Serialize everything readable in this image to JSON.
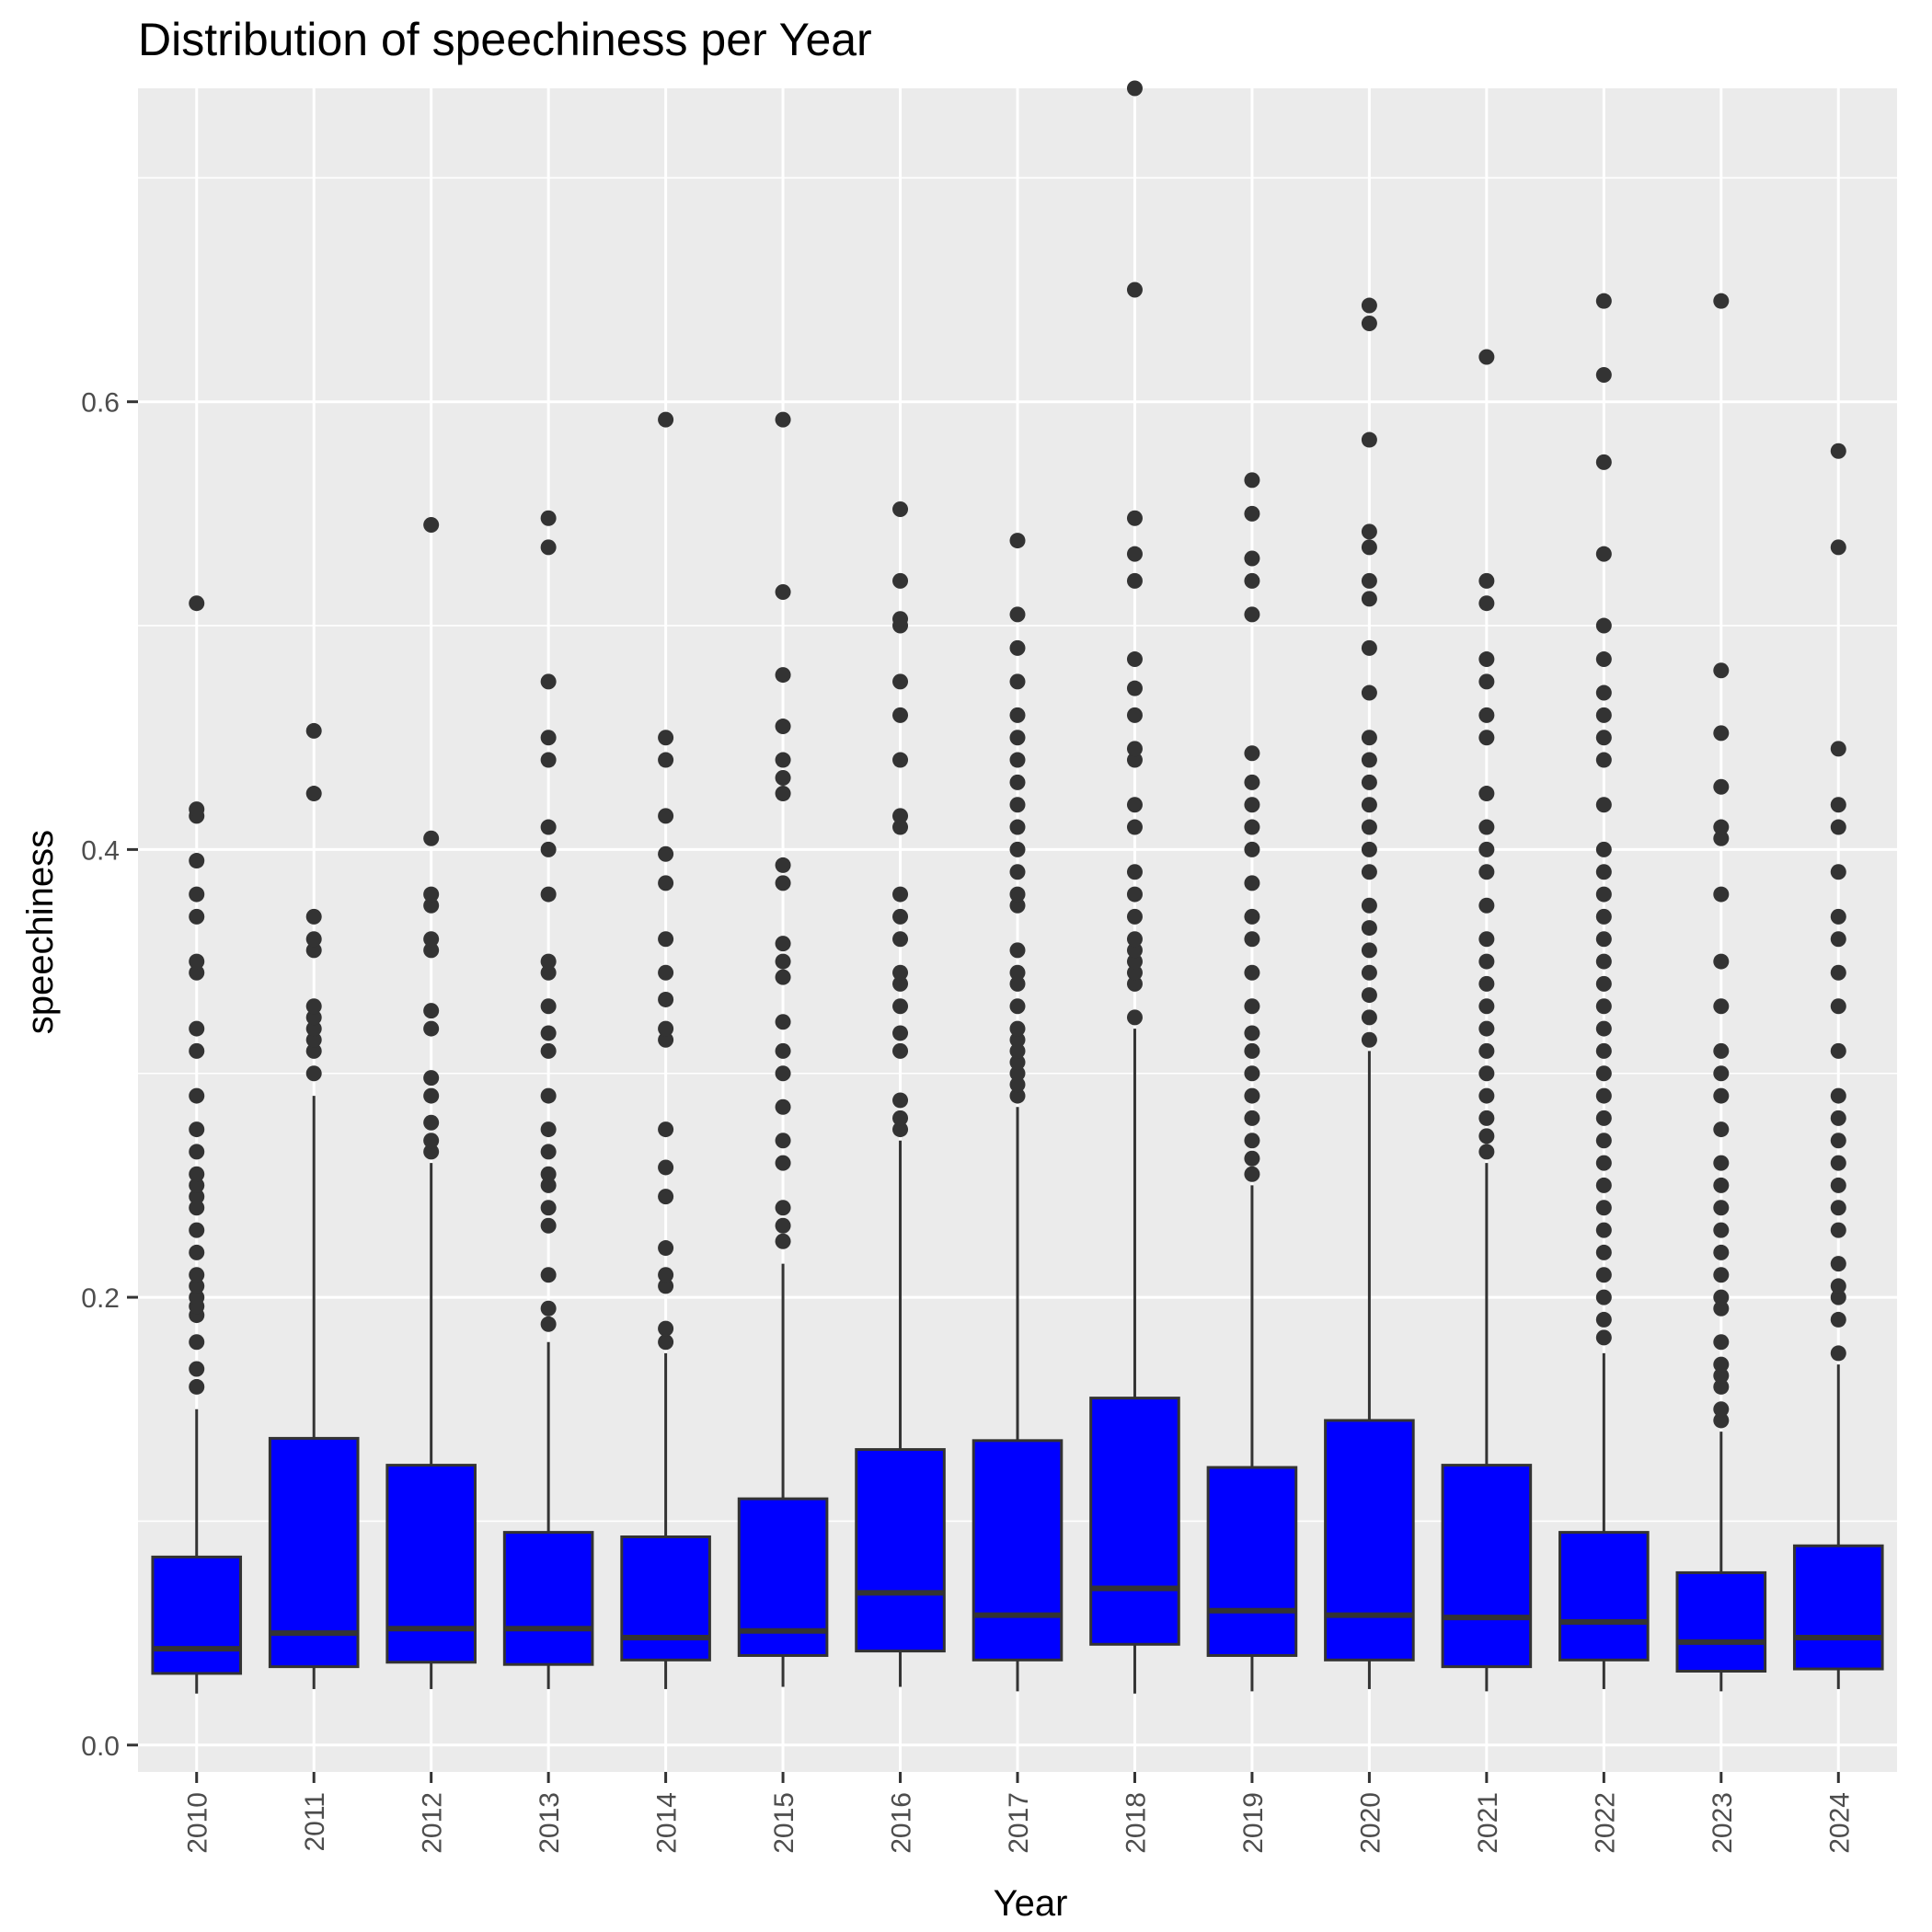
{
  "chart_data": {
    "type": "boxplot",
    "title": "Distribution of speechiness per Year",
    "xlabel": "Year",
    "ylabel": "speechiness",
    "categories": [
      "2010",
      "2011",
      "2012",
      "2013",
      "2014",
      "2015",
      "2016",
      "2017",
      "2018",
      "2019",
      "2020",
      "2021",
      "2022",
      "2023",
      "2024"
    ],
    "ylim": [
      -0.012,
      0.74
    ],
    "y_ticks": [
      0.0,
      0.2,
      0.4,
      0.6
    ],
    "y_tick_labels": [
      "0.0",
      "0.2",
      "0.4",
      "0.6"
    ],
    "grid": true,
    "fill_color": "#0000ff",
    "line_color": "#333333",
    "panel_color": "#ebebeb",
    "boxes": [
      {
        "year": "2010",
        "whisker_low": 0.023,
        "q1": 0.032,
        "median": 0.043,
        "q3": 0.084,
        "whisker_high": 0.15,
        "outliers": [
          0.16,
          0.168,
          0.18,
          0.192,
          0.196,
          0.2,
          0.205,
          0.21,
          0.22,
          0.23,
          0.24,
          0.245,
          0.25,
          0.255,
          0.265,
          0.275,
          0.29,
          0.31,
          0.32,
          0.345,
          0.35,
          0.37,
          0.38,
          0.395,
          0.415,
          0.418,
          0.51
        ]
      },
      {
        "year": "2011",
        "whisker_low": 0.025,
        "q1": 0.035,
        "median": 0.05,
        "q3": 0.137,
        "whisker_high": 0.29,
        "outliers": [
          0.3,
          0.31,
          0.315,
          0.32,
          0.325,
          0.33,
          0.355,
          0.36,
          0.37,
          0.425,
          0.453
        ]
      },
      {
        "year": "2012",
        "whisker_low": 0.025,
        "q1": 0.037,
        "median": 0.052,
        "q3": 0.125,
        "whisker_high": 0.26,
        "outliers": [
          0.265,
          0.27,
          0.278,
          0.29,
          0.298,
          0.32,
          0.328,
          0.355,
          0.36,
          0.375,
          0.38,
          0.405,
          0.545
        ]
      },
      {
        "year": "2013",
        "whisker_low": 0.025,
        "q1": 0.036,
        "median": 0.052,
        "q3": 0.095,
        "whisker_high": 0.18,
        "outliers": [
          0.188,
          0.195,
          0.21,
          0.232,
          0.24,
          0.25,
          0.255,
          0.265,
          0.275,
          0.29,
          0.31,
          0.318,
          0.33,
          0.345,
          0.35,
          0.38,
          0.4,
          0.41,
          0.44,
          0.45,
          0.475,
          0.535,
          0.548
        ]
      },
      {
        "year": "2014",
        "whisker_low": 0.025,
        "q1": 0.038,
        "median": 0.048,
        "q3": 0.093,
        "whisker_high": 0.175,
        "outliers": [
          0.18,
          0.186,
          0.205,
          0.21,
          0.222,
          0.245,
          0.258,
          0.275,
          0.315,
          0.32,
          0.333,
          0.345,
          0.36,
          0.385,
          0.398,
          0.415,
          0.44,
          0.45,
          0.592
        ]
      },
      {
        "year": "2015",
        "whisker_low": 0.026,
        "q1": 0.04,
        "median": 0.051,
        "q3": 0.11,
        "whisker_high": 0.215,
        "outliers": [
          0.225,
          0.232,
          0.24,
          0.26,
          0.27,
          0.285,
          0.3,
          0.31,
          0.323,
          0.343,
          0.35,
          0.358,
          0.385,
          0.393,
          0.425,
          0.432,
          0.44,
          0.455,
          0.478,
          0.515,
          0.592
        ]
      },
      {
        "year": "2016",
        "whisker_low": 0.026,
        "q1": 0.042,
        "median": 0.068,
        "q3": 0.132,
        "whisker_high": 0.27,
        "outliers": [
          0.275,
          0.28,
          0.288,
          0.31,
          0.318,
          0.33,
          0.34,
          0.345,
          0.36,
          0.37,
          0.38,
          0.41,
          0.415,
          0.44,
          0.46,
          0.475,
          0.5,
          0.503,
          0.52,
          0.552
        ]
      },
      {
        "year": "2017",
        "whisker_low": 0.024,
        "q1": 0.038,
        "median": 0.058,
        "q3": 0.136,
        "whisker_high": 0.285,
        "outliers": [
          0.29,
          0.295,
          0.3,
          0.305,
          0.31,
          0.315,
          0.32,
          0.33,
          0.34,
          0.345,
          0.355,
          0.375,
          0.38,
          0.39,
          0.4,
          0.41,
          0.42,
          0.43,
          0.44,
          0.45,
          0.46,
          0.475,
          0.49,
          0.505,
          0.538
        ]
      },
      {
        "year": "2018",
        "whisker_low": 0.023,
        "q1": 0.045,
        "median": 0.07,
        "q3": 0.155,
        "whisker_high": 0.32,
        "outliers": [
          0.325,
          0.34,
          0.345,
          0.35,
          0.355,
          0.36,
          0.37,
          0.38,
          0.39,
          0.41,
          0.42,
          0.44,
          0.445,
          0.46,
          0.472,
          0.485,
          0.52,
          0.532,
          0.548,
          0.65,
          0.74
        ]
      },
      {
        "year": "2019",
        "whisker_low": 0.024,
        "q1": 0.04,
        "median": 0.06,
        "q3": 0.124,
        "whisker_high": 0.25,
        "outliers": [
          0.255,
          0.262,
          0.27,
          0.28,
          0.29,
          0.3,
          0.31,
          0.318,
          0.33,
          0.345,
          0.36,
          0.37,
          0.385,
          0.4,
          0.41,
          0.42,
          0.43,
          0.443,
          0.505,
          0.52,
          0.53,
          0.55,
          0.565
        ]
      },
      {
        "year": "2020",
        "whisker_low": 0.025,
        "q1": 0.038,
        "median": 0.058,
        "q3": 0.145,
        "whisker_high": 0.31,
        "outliers": [
          0.315,
          0.325,
          0.335,
          0.345,
          0.355,
          0.365,
          0.375,
          0.39,
          0.4,
          0.41,
          0.42,
          0.43,
          0.44,
          0.45,
          0.47,
          0.49,
          0.512,
          0.52,
          0.535,
          0.542,
          0.583,
          0.635,
          0.643
        ]
      },
      {
        "year": "2021",
        "whisker_low": 0.024,
        "q1": 0.035,
        "median": 0.057,
        "q3": 0.125,
        "whisker_high": 0.26,
        "outliers": [
          0.265,
          0.272,
          0.28,
          0.29,
          0.3,
          0.31,
          0.32,
          0.33,
          0.34,
          0.35,
          0.36,
          0.375,
          0.39,
          0.4,
          0.41,
          0.425,
          0.45,
          0.46,
          0.475,
          0.485,
          0.51,
          0.52,
          0.62
        ]
      },
      {
        "year": "2022",
        "whisker_low": 0.025,
        "q1": 0.038,
        "median": 0.055,
        "q3": 0.095,
        "whisker_high": 0.175,
        "outliers": [
          0.182,
          0.19,
          0.2,
          0.21,
          0.22,
          0.23,
          0.24,
          0.25,
          0.26,
          0.27,
          0.28,
          0.29,
          0.3,
          0.31,
          0.32,
          0.33,
          0.34,
          0.35,
          0.36,
          0.37,
          0.38,
          0.39,
          0.4,
          0.42,
          0.44,
          0.45,
          0.46,
          0.47,
          0.485,
          0.5,
          0.532,
          0.573,
          0.612,
          0.645
        ]
      },
      {
        "year": "2023",
        "whisker_low": 0.024,
        "q1": 0.033,
        "median": 0.046,
        "q3": 0.077,
        "whisker_high": 0.14,
        "outliers": [
          0.145,
          0.15,
          0.16,
          0.165,
          0.17,
          0.18,
          0.195,
          0.2,
          0.21,
          0.22,
          0.23,
          0.24,
          0.25,
          0.26,
          0.275,
          0.29,
          0.3,
          0.31,
          0.33,
          0.35,
          0.38,
          0.405,
          0.41,
          0.428,
          0.452,
          0.48,
          0.645
        ]
      },
      {
        "year": "2024",
        "whisker_low": 0.025,
        "q1": 0.034,
        "median": 0.048,
        "q3": 0.089,
        "whisker_high": 0.17,
        "outliers": [
          0.175,
          0.19,
          0.2,
          0.205,
          0.215,
          0.23,
          0.24,
          0.25,
          0.26,
          0.27,
          0.28,
          0.29,
          0.31,
          0.33,
          0.345,
          0.36,
          0.37,
          0.39,
          0.41,
          0.42,
          0.445,
          0.535,
          0.578
        ]
      }
    ]
  }
}
